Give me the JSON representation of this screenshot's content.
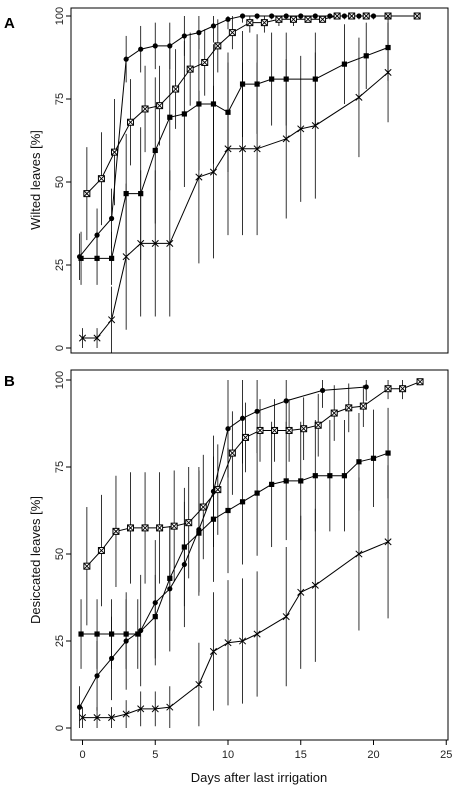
{
  "chart_data": [
    {
      "panel": "A",
      "type": "line",
      "title": "",
      "xlabel": "",
      "ylabel": "Wilted leaves [%]",
      "xlim": [
        -1,
        24
      ],
      "ylim": [
        -3,
        101
      ],
      "yticks": [
        0,
        25,
        50,
        75,
        100
      ],
      "grid": false,
      "legend": "none",
      "series": [
        {
          "marker": "circle",
          "x": [
            -0.2,
            1,
            2,
            3,
            4,
            5,
            6,
            7,
            8,
            9,
            10,
            11,
            12,
            13,
            14,
            15,
            16,
            17,
            18,
            19,
            20
          ],
          "y": [
            27.5,
            34,
            39,
            87,
            90,
            91,
            91,
            94,
            95,
            97,
            99,
            100,
            100,
            100,
            100,
            100,
            100,
            100,
            100,
            100,
            100
          ],
          "err": [
            7,
            8,
            9,
            7,
            7,
            7,
            7,
            6,
            5,
            5,
            3,
            2,
            1,
            1,
            1,
            1,
            1,
            1,
            1,
            1,
            1
          ]
        },
        {
          "marker": "boxed-x",
          "x": [
            0.3,
            1.3,
            2.2,
            3.3,
            4.3,
            5.3,
            6.4,
            7.4,
            8.4,
            9.3,
            10.3,
            11.5,
            12.5,
            13.5,
            14.5,
            15.5,
            16.5,
            17.5,
            18.5,
            19.5,
            21,
            23
          ],
          "y": [
            46.5,
            51,
            59,
            68,
            72,
            73,
            78,
            84,
            86,
            91,
            95,
            98,
            98,
            99,
            99,
            99,
            99,
            100,
            100,
            100,
            100,
            100
          ],
          "err": [
            14,
            14,
            16,
            13,
            13,
            12,
            12,
            11,
            10,
            8,
            5,
            3,
            3,
            2,
            2,
            1,
            1,
            1,
            1,
            1,
            1,
            1
          ]
        },
        {
          "marker": "filled-square",
          "x": [
            -0.1,
            1,
            2,
            3,
            4,
            5,
            6,
            7,
            8,
            9,
            10,
            11,
            12,
            13,
            14,
            16,
            18,
            19.5,
            21
          ],
          "y": [
            27,
            27,
            27,
            46.5,
            46.5,
            59.5,
            69.5,
            70.5,
            73.5,
            73.5,
            71,
            79.5,
            79.5,
            81,
            81,
            81,
            85.5,
            88,
            90.5
          ],
          "err": [
            8,
            8,
            8,
            18,
            20,
            22,
            22,
            22,
            20,
            18,
            18,
            16,
            15,
            14,
            14,
            14,
            12,
            10,
            10
          ]
        },
        {
          "marker": "x",
          "x": [
            0,
            1,
            2,
            3,
            4,
            5,
            6,
            8,
            9,
            10,
            11,
            12,
            14,
            15,
            16,
            19,
            21
          ],
          "y": [
            3,
            3,
            8.5,
            27.5,
            31.5,
            31.5,
            31.5,
            51.5,
            53,
            60,
            60,
            60,
            63,
            66,
            67,
            75.5,
            83
          ],
          "err": [
            3,
            3,
            10,
            22,
            22,
            22,
            22,
            26,
            26,
            26,
            26,
            26,
            24,
            22,
            22,
            18,
            15
          ]
        }
      ]
    },
    {
      "panel": "B",
      "type": "line",
      "title": "",
      "xlabel": "Days after last irrigation",
      "ylabel": "Desiccated leaves [%]",
      "xlim": [
        -1,
        24
      ],
      "ylim": [
        -3,
        101
      ],
      "xticks": [
        0,
        5,
        10,
        15,
        20,
        25
      ],
      "yticks": [
        0,
        25,
        50,
        75,
        100
      ],
      "grid": false,
      "legend": "none",
      "series": [
        {
          "marker": "circle",
          "x": [
            -0.2,
            1,
            2,
            3,
            4,
            5,
            6,
            7,
            8,
            9,
            10,
            11,
            12,
            14,
            16.5,
            19.5
          ],
          "y": [
            6,
            15,
            20,
            25,
            28,
            36,
            40,
            47,
            57,
            68,
            86,
            89,
            91,
            94,
            97,
            98
          ],
          "err": [
            6,
            10,
            12,
            14,
            16,
            18,
            18,
            18,
            18,
            16,
            14,
            13,
            12,
            8,
            5,
            4
          ]
        },
        {
          "marker": "boxed-x",
          "x": [
            0.3,
            1.3,
            2.3,
            3.3,
            4.3,
            5.3,
            6.3,
            7.3,
            8.3,
            9.3,
            10.3,
            11.2,
            12.2,
            13.2,
            14.2,
            15.2,
            16.2,
            17.3,
            18.3,
            19.3,
            21,
            22,
            23.2
          ],
          "y": [
            46.5,
            51,
            56.5,
            57.5,
            57.5,
            57.5,
            58,
            59,
            63.5,
            68.5,
            79,
            83.5,
            85.5,
            85.5,
            85.5,
            86,
            87,
            90.5,
            92,
            92.5,
            97.5,
            97.5,
            99.5
          ],
          "err": [
            17,
            16,
            16,
            16,
            16,
            16,
            16,
            16,
            15,
            13,
            12,
            10,
            9,
            9,
            9,
            9,
            9,
            8,
            7,
            6,
            3,
            3,
            1
          ]
        },
        {
          "marker": "filled-square",
          "x": [
            -0.1,
            1,
            2,
            3,
            3.8,
            5,
            6,
            7,
            8,
            9,
            10,
            11,
            12,
            13,
            14,
            15,
            16,
            17,
            18,
            19,
            20,
            21
          ],
          "y": [
            27,
            27,
            27,
            27,
            27,
            32,
            43,
            52,
            56,
            60,
            62.5,
            65,
            67.5,
            70,
            71,
            71,
            72.5,
            72.5,
            72.5,
            76.5,
            77.5,
            79
          ],
          "err": [
            10,
            10,
            10,
            10,
            10,
            12,
            15,
            17,
            18,
            18,
            18,
            18,
            18,
            18,
            17,
            17,
            16,
            16,
            16,
            14,
            14,
            13
          ]
        },
        {
          "marker": "x",
          "x": [
            0,
            1,
            2,
            3,
            4,
            5,
            6,
            8,
            9,
            10,
            11,
            12,
            14,
            15,
            16,
            19,
            21
          ],
          "y": [
            3,
            3,
            3,
            4,
            5.5,
            5.5,
            6,
            12.5,
            22,
            24.5,
            25,
            27,
            32,
            39,
            41,
            50,
            53.5
          ],
          "err": [
            3,
            3,
            3,
            4,
            5,
            5,
            6,
            12,
            17,
            18,
            18,
            18,
            20,
            22,
            22,
            22,
            22
          ]
        }
      ]
    }
  ]
}
